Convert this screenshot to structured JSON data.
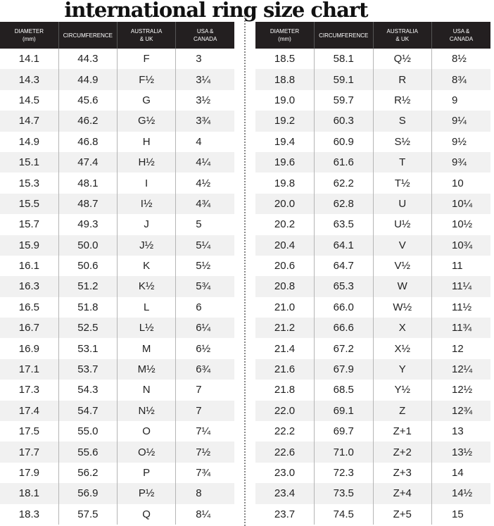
{
  "title": "international ring size chart",
  "headers": [
    "DIAMETER\n(mm)",
    "CIRCUMFERENCE",
    "AUSTRALIA\n& UK",
    "USA &\nCANADA"
  ],
  "left_rows": [
    [
      "14.1",
      "44.3",
      "F",
      "3"
    ],
    [
      "14.3",
      "44.9",
      "F½",
      "3¼"
    ],
    [
      "14.5",
      "45.6",
      "G",
      "3½"
    ],
    [
      "14.7",
      "46.2",
      "G½",
      "3¾"
    ],
    [
      "14.9",
      "46.8",
      "H",
      "4"
    ],
    [
      "15.1",
      "47.4",
      "H½",
      "4¼"
    ],
    [
      "15.3",
      "48.1",
      "I",
      "4½"
    ],
    [
      "15.5",
      "48.7",
      "I½",
      "4¾"
    ],
    [
      "15.7",
      "49.3",
      "J",
      "5"
    ],
    [
      "15.9",
      "50.0",
      "J½",
      "5¼"
    ],
    [
      "16.1",
      "50.6",
      "K",
      "5½"
    ],
    [
      "16.3",
      "51.2",
      "K½",
      "5¾"
    ],
    [
      "16.5",
      "51.8",
      "L",
      "6"
    ],
    [
      "16.7",
      "52.5",
      "L½",
      "6¼"
    ],
    [
      "16.9",
      "53.1",
      "M",
      "6½"
    ],
    [
      "17.1",
      "53.7",
      "M½",
      "6¾"
    ],
    [
      "17.3",
      "54.3",
      "N",
      "7"
    ],
    [
      "17.4",
      "54.7",
      "N½",
      "7"
    ],
    [
      "17.5",
      "55.0",
      "O",
      "7¼"
    ],
    [
      "17.7",
      "55.6",
      "O½",
      "7½"
    ],
    [
      "17.9",
      "56.2",
      "P",
      "7¾"
    ],
    [
      "18.1",
      "56.9",
      "P½",
      "8"
    ],
    [
      "18.3",
      "57.5",
      "Q",
      "8¼"
    ]
  ],
  "right_rows": [
    [
      "18.5",
      "58.1",
      "Q½",
      "8½"
    ],
    [
      "18.8",
      "59.1",
      "R",
      "8¾"
    ],
    [
      "19.0",
      "59.7",
      "R½",
      "9"
    ],
    [
      "19.2",
      "60.3",
      "S",
      "9¼"
    ],
    [
      "19.4",
      "60.9",
      "S½",
      "9½"
    ],
    [
      "19.6",
      "61.6",
      "T",
      "9¾"
    ],
    [
      "19.8",
      "62.2",
      "T½",
      "10"
    ],
    [
      "20.0",
      "62.8",
      "U",
      "10¼"
    ],
    [
      "20.2",
      "63.5",
      "U½",
      "10½"
    ],
    [
      "20.4",
      "64.1",
      "V",
      "10¾"
    ],
    [
      "20.6",
      "64.7",
      "V½",
      "11"
    ],
    [
      "20.8",
      "65.3",
      "W",
      "11¼"
    ],
    [
      "21.0",
      "66.0",
      "W½",
      "11½"
    ],
    [
      "21.2",
      "66.6",
      "X",
      "11¾"
    ],
    [
      "21.4",
      "67.2",
      "X½",
      "12"
    ],
    [
      "21.6",
      "67.9",
      "Y",
      "12¼"
    ],
    [
      "21.8",
      "68.5",
      "Y½",
      "12½"
    ],
    [
      "22.0",
      "69.1",
      "Z",
      "12¾"
    ],
    [
      "22.2",
      "69.7",
      "Z+1",
      "13"
    ],
    [
      "22.6",
      "71.0",
      "Z+2",
      "13½"
    ],
    [
      "23.0",
      "72.3",
      "Z+3",
      "14"
    ],
    [
      "23.4",
      "73.5",
      "Z+4",
      "14½"
    ],
    [
      "23.7",
      "74.5",
      "Z+5",
      "15"
    ]
  ],
  "colors": {
    "header_bg": "#231f20",
    "stripe": "#f1f1f1"
  }
}
